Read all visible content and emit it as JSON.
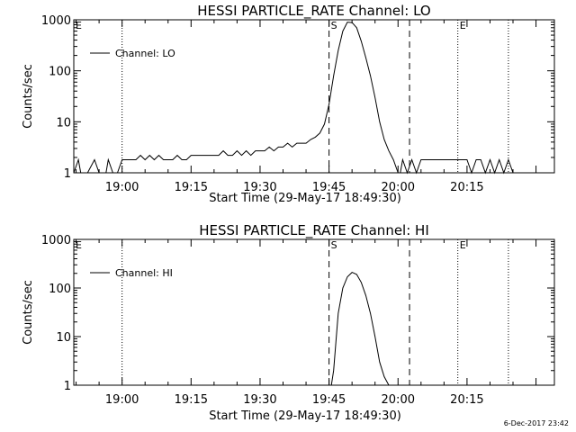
{
  "footer": {
    "timestamp": "6-Dec-2017 23:42"
  },
  "chart_data": [
    {
      "type": "line",
      "title": "HESSI PARTICLE_RATE Channel: LO",
      "xlabel": "Start Time (29-May-17 18:49:30)",
      "ylabel": "Counts/sec",
      "yscale": "log",
      "xlim": [
        "18:49:30",
        "20:34:00"
      ],
      "ylim": [
        1,
        1000
      ],
      "xticks": [
        "19:00",
        "19:15",
        "19:30",
        "19:45",
        "20:00",
        "20:15"
      ],
      "yticks": [
        "1",
        "10",
        "100",
        "1000"
      ],
      "markers": [
        {
          "time": "18:49:30",
          "label": "E",
          "style": "dotted"
        },
        {
          "time": "19:00:00",
          "label": "",
          "style": "dotted"
        },
        {
          "time": "19:45:00",
          "label": "S",
          "style": "dashed"
        },
        {
          "time": "20:02:30",
          "label": "",
          "style": "dashed"
        },
        {
          "time": "20:13:00",
          "label": "E",
          "style": "dotted"
        },
        {
          "time": "20:24:00",
          "label": "",
          "style": "dotted"
        }
      ],
      "legend": {
        "position": "top-left",
        "entries": [
          "Channel: LO"
        ]
      },
      "series": [
        {
          "name": "Channel: LO",
          "x": [
            "18:49:30",
            "18:50:30",
            "18:51:00",
            "18:51:40",
            "18:52:30",
            "18:54:00",
            "18:55:00",
            "18:56:00",
            "18:56:30",
            "18:57:00",
            "18:58:00",
            "18:59:00",
            "19:00:00",
            "19:01:00",
            "19:02:00",
            "19:03:00",
            "19:04:00",
            "19:05:00",
            "19:06:00",
            "19:07:00",
            "19:08:00",
            "19:09:00",
            "19:10:00",
            "19:11:00",
            "19:12:00",
            "19:13:00",
            "19:14:00",
            "19:15:00",
            "19:16:00",
            "19:17:00",
            "19:18:00",
            "19:19:00",
            "19:20:00",
            "19:21:00",
            "19:22:00",
            "19:23:00",
            "19:24:00",
            "19:25:00",
            "19:26:00",
            "19:27:00",
            "19:28:00",
            "19:29:00",
            "19:30:00",
            "19:31:00",
            "19:32:00",
            "19:33:00",
            "19:34:00",
            "19:35:00",
            "19:36:00",
            "19:37:00",
            "19:38:00",
            "19:39:00",
            "19:40:00",
            "19:41:00",
            "19:42:00",
            "19:43:00",
            "19:44:00",
            "19:45:00",
            "19:46:00",
            "19:47:00",
            "19:48:00",
            "19:49:00",
            "19:50:00",
            "19:51:00",
            "19:52:00",
            "19:53:00",
            "19:54:00",
            "19:55:00",
            "19:56:00",
            "19:57:00",
            "19:58:00",
            "19:59:00",
            "20:00:00",
            "20:00:30",
            "20:01:00",
            "20:02:00",
            "20:03:00",
            "20:04:00",
            "20:05:00",
            "20:06:00",
            "20:07:00",
            "20:08:00",
            "20:09:00",
            "20:10:00",
            "20:11:00",
            "20:12:00",
            "20:13:00",
            "20:14:00",
            "20:15:00",
            "20:16:00",
            "20:17:00",
            "20:18:00",
            "20:19:00",
            "20:20:00",
            "20:21:00",
            "20:22:00",
            "20:23:00",
            "20:24:00",
            "20:25:00"
          ],
          "values": [
            1,
            1.8,
            1,
            1,
            1,
            1.8,
            1,
            1,
            1,
            1.8,
            1,
            1,
            1.8,
            1.8,
            1.8,
            1.8,
            2.2,
            1.8,
            2.2,
            1.8,
            2.2,
            1.8,
            1.8,
            1.8,
            2.2,
            1.8,
            1.8,
            2.2,
            2.2,
            2.2,
            2.2,
            2.2,
            2.2,
            2.2,
            2.7,
            2.2,
            2.2,
            2.7,
            2.2,
            2.7,
            2.2,
            2.7,
            2.7,
            2.7,
            3.2,
            2.7,
            3.2,
            3.2,
            3.8,
            3.2,
            3.8,
            3.8,
            3.8,
            4.5,
            5,
            6,
            9,
            22,
            80,
            250,
            600,
            900,
            880,
            700,
            380,
            180,
            80,
            30,
            10,
            4.5,
            2.7,
            1.8,
            1,
            1,
            1.8,
            1,
            1.8,
            1,
            1.8,
            1.8,
            1.8,
            1.8,
            1.8,
            1.8,
            1.8,
            1.8,
            1.8,
            1.8,
            1.8,
            1,
            1.8,
            1.8,
            1,
            1.8,
            1,
            1.8,
            1,
            1.8,
            1
          ]
        }
      ]
    },
    {
      "type": "line",
      "title": "HESSI PARTICLE_RATE Channel: HI",
      "xlabel": "Start Time (29-May-17 18:49:30)",
      "ylabel": "Counts/sec",
      "yscale": "log",
      "xlim": [
        "18:49:30",
        "20:34:00"
      ],
      "ylim": [
        1,
        1000
      ],
      "xticks": [
        "19:00",
        "19:15",
        "19:30",
        "19:45",
        "20:00",
        "20:15"
      ],
      "yticks": [
        "1",
        "10",
        "100",
        "1000"
      ],
      "markers": [
        {
          "time": "18:49:30",
          "label": "E",
          "style": "dotted"
        },
        {
          "time": "19:00:00",
          "label": "",
          "style": "dotted"
        },
        {
          "time": "19:45:00",
          "label": "S",
          "style": "dashed"
        },
        {
          "time": "20:02:30",
          "label": "",
          "style": "dashed"
        },
        {
          "time": "20:13:00",
          "label": "E",
          "style": "dotted"
        },
        {
          "time": "20:24:00",
          "label": "",
          "style": "dotted"
        }
      ],
      "legend": {
        "position": "top-left",
        "entries": [
          "Channel: HI"
        ]
      },
      "series": [
        {
          "name": "Channel: HI",
          "x": [
            "19:45:30",
            "19:46:00",
            "19:46:30",
            "19:47:00",
            "19:48:00",
            "19:49:00",
            "19:50:00",
            "19:51:00",
            "19:52:00",
            "19:53:00",
            "19:54:00",
            "19:55:00",
            "19:56:00",
            "19:57:00",
            "19:58:00"
          ],
          "values": [
            1,
            2,
            8,
            30,
            100,
            170,
            210,
            190,
            130,
            70,
            30,
            10,
            3,
            1.5,
            1
          ]
        }
      ]
    }
  ]
}
